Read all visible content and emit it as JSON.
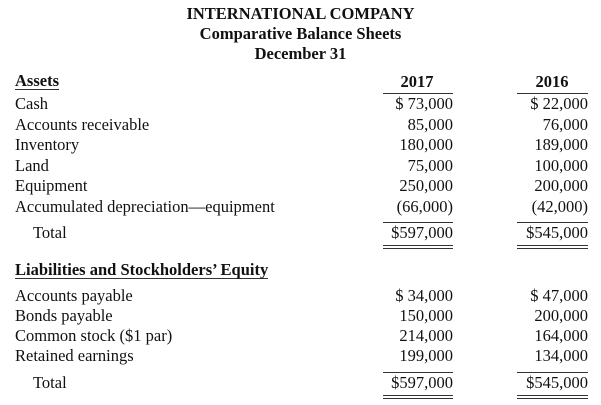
{
  "header": {
    "company": "INTERNATIONAL COMPANY",
    "title": "Comparative Balance Sheets",
    "date": "December 31"
  },
  "columns": [
    "2017",
    "2016"
  ],
  "assets": {
    "heading": "Assets",
    "rows": [
      {
        "label": "Cash",
        "y2017": "$ 73,000",
        "y2016": "$ 22,000"
      },
      {
        "label": "Accounts receivable",
        "y2017": "85,000",
        "y2016": "76,000"
      },
      {
        "label": "Inventory",
        "y2017": "180,000",
        "y2016": "189,000"
      },
      {
        "label": "Land",
        "y2017": "75,000",
        "y2016": "100,000"
      },
      {
        "label": "Equipment",
        "y2017": "250,000",
        "y2016": "200,000"
      },
      {
        "label": "Accumulated depreciation—equipment",
        "y2017": "(66,000)",
        "y2016": "(42,000)"
      }
    ],
    "total": {
      "label": "Total",
      "y2017": "$597,000",
      "y2016": "$545,000"
    }
  },
  "liabilities": {
    "heading": "Liabilities and Stockholders’ Equity",
    "rows": [
      {
        "label": "Accounts payable",
        "y2017": "$ 34,000",
        "y2016": "$ 47,000"
      },
      {
        "label": "Bonds payable",
        "y2017": "150,000",
        "y2016": "200,000"
      },
      {
        "label": "Common stock ($1 par)",
        "y2017": "214,000",
        "y2016": "164,000"
      },
      {
        "label": "Retained earnings",
        "y2017": "199,000",
        "y2016": "134,000"
      }
    ],
    "total": {
      "label": "Total",
      "y2017": "$597,000",
      "y2016": "$545,000"
    }
  }
}
